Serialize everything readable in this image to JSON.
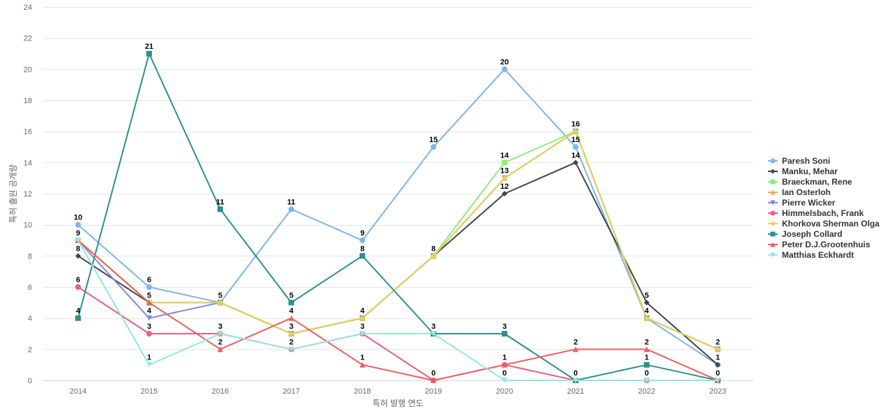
{
  "chart_data": {
    "type": "line",
    "x": [
      2014,
      2015,
      2016,
      2017,
      2018,
      2019,
      2020,
      2021,
      2022,
      2023
    ],
    "xlabel": "특허 발행 연도",
    "ylabel": "특허 출원 공개량",
    "ylim": [
      0,
      24
    ],
    "yticks": [
      0,
      2,
      4,
      6,
      8,
      10,
      12,
      14,
      16,
      18,
      20,
      22,
      24
    ],
    "grid": true,
    "legend_position": "right",
    "series": [
      {
        "name": "Paresh Soni",
        "color": "#7cb5ec",
        "marker": "circle",
        "values": [
          10,
          6,
          5,
          11,
          9,
          15,
          20,
          15,
          4,
          1
        ]
      },
      {
        "name": "Manku, Mehar",
        "color": "#434348",
        "marker": "diamond",
        "values": [
          8,
          5,
          5,
          3,
          4,
          8,
          12,
          14,
          5,
          1
        ]
      },
      {
        "name": "Braeckman, Rene",
        "color": "#90ed7d",
        "marker": "square",
        "values": [
          9,
          5,
          5,
          3,
          4,
          8,
          14,
          16,
          4,
          2
        ]
      },
      {
        "name": "Ian Osterloh",
        "color": "#f7a35c",
        "marker": "triangle",
        "values": [
          9,
          5,
          5,
          3,
          4,
          8,
          13,
          16,
          4,
          2
        ]
      },
      {
        "name": "Pierre Wicker",
        "color": "#8085e9",
        "marker": "triangle-down",
        "values": [
          9,
          4,
          5,
          3,
          4,
          8,
          13,
          16,
          4,
          2
        ]
      },
      {
        "name": "Himmelsbach, Frank",
        "color": "#f15c80",
        "marker": "circle",
        "values": [
          6,
          3,
          3,
          2,
          3,
          0,
          1,
          0,
          0,
          0
        ]
      },
      {
        "name": "Khorkova Sherman Olga",
        "color": "#e4d354",
        "marker": "diamond",
        "values": [
          9,
          5,
          5,
          3,
          4,
          8,
          13,
          16,
          4,
          2
        ]
      },
      {
        "name": "Joseph Collard",
        "color": "#2b908f",
        "marker": "square",
        "values": [
          4,
          21,
          11,
          5,
          8,
          3,
          3,
          0,
          1,
          0
        ]
      },
      {
        "name": "Peter D.J.Grootenhuis",
        "color": "#f45b5b",
        "marker": "triangle",
        "values": [
          9,
          5,
          2,
          4,
          1,
          0,
          1,
          2,
          2,
          0
        ]
      },
      {
        "name": "Matthias Eckhardt",
        "color": "#91e8e1",
        "marker": "triangle-down",
        "values": [
          9,
          1,
          3,
          2,
          3,
          3,
          0,
          0,
          0,
          0
        ]
      }
    ],
    "data_labels": [
      {
        "x": 2014,
        "y": 10,
        "text": "10"
      },
      {
        "x": 2014,
        "y": 9,
        "text": "9"
      },
      {
        "x": 2014,
        "y": 8,
        "text": "8"
      },
      {
        "x": 2014,
        "y": 6,
        "text": "6"
      },
      {
        "x": 2014,
        "y": 4,
        "text": "4"
      },
      {
        "x": 2015,
        "y": 21,
        "text": "21"
      },
      {
        "x": 2015,
        "y": 6,
        "text": "6"
      },
      {
        "x": 2015,
        "y": 5,
        "text": "5"
      },
      {
        "x": 2015,
        "y": 4,
        "text": "4"
      },
      {
        "x": 2015,
        "y": 3,
        "text": "3"
      },
      {
        "x": 2015,
        "y": 1,
        "text": "1"
      },
      {
        "x": 2016,
        "y": 11,
        "text": "11"
      },
      {
        "x": 2016,
        "y": 5,
        "text": "5"
      },
      {
        "x": 2016,
        "y": 3,
        "text": "3"
      },
      {
        "x": 2016,
        "y": 2,
        "text": "2"
      },
      {
        "x": 2017,
        "y": 11,
        "text": "11"
      },
      {
        "x": 2017,
        "y": 5,
        "text": "5"
      },
      {
        "x": 2017,
        "y": 4,
        "text": "4"
      },
      {
        "x": 2017,
        "y": 3,
        "text": "3"
      },
      {
        "x": 2017,
        "y": 2,
        "text": "2"
      },
      {
        "x": 2018,
        "y": 9,
        "text": "9"
      },
      {
        "x": 2018,
        "y": 8,
        "text": "8"
      },
      {
        "x": 2018,
        "y": 4,
        "text": "4"
      },
      {
        "x": 2018,
        "y": 3,
        "text": "3"
      },
      {
        "x": 2018,
        "y": 1,
        "text": "1"
      },
      {
        "x": 2019,
        "y": 15,
        "text": "15"
      },
      {
        "x": 2019,
        "y": 8,
        "text": "8"
      },
      {
        "x": 2019,
        "y": 3,
        "text": "3"
      },
      {
        "x": 2019,
        "y": 0,
        "text": "0"
      },
      {
        "x": 2020,
        "y": 20,
        "text": "20"
      },
      {
        "x": 2020,
        "y": 14,
        "text": "14"
      },
      {
        "x": 2020,
        "y": 13,
        "text": "13"
      },
      {
        "x": 2020,
        "y": 12,
        "text": "12"
      },
      {
        "x": 2020,
        "y": 3,
        "text": "3"
      },
      {
        "x": 2020,
        "y": 1,
        "text": "1"
      },
      {
        "x": 2020,
        "y": 0,
        "text": "0"
      },
      {
        "x": 2021,
        "y": 16,
        "text": "16"
      },
      {
        "x": 2021,
        "y": 15,
        "text": "15"
      },
      {
        "x": 2021,
        "y": 14,
        "text": "14"
      },
      {
        "x": 2021,
        "y": 2,
        "text": "2"
      },
      {
        "x": 2021,
        "y": 0,
        "text": "0"
      },
      {
        "x": 2022,
        "y": 5,
        "text": "5"
      },
      {
        "x": 2022,
        "y": 4,
        "text": "4"
      },
      {
        "x": 2022,
        "y": 2,
        "text": "2"
      },
      {
        "x": 2022,
        "y": 1,
        "text": "1"
      },
      {
        "x": 2022,
        "y": 0,
        "text": "0"
      },
      {
        "x": 2023,
        "y": 2,
        "text": "2"
      },
      {
        "x": 2023,
        "y": 1,
        "text": "1"
      },
      {
        "x": 2023,
        "y": 0,
        "text": "0"
      }
    ]
  }
}
